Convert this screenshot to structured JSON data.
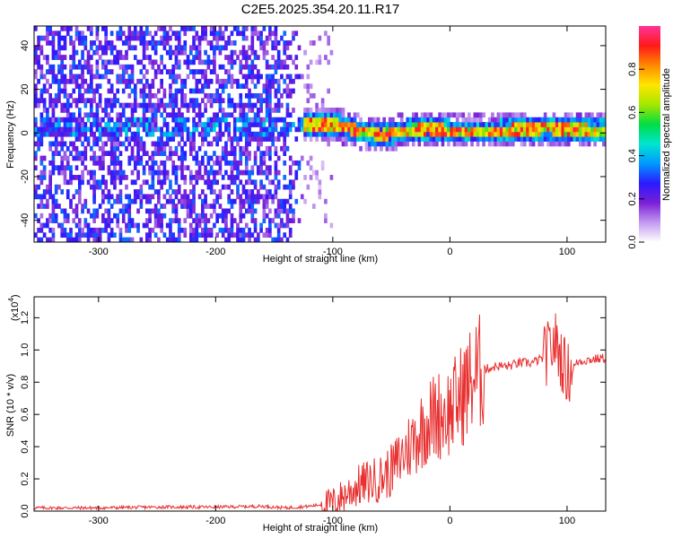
{
  "title": "C2E5.2025.354.20.11.R17",
  "chart_data": [
    {
      "type": "heatmap",
      "xlabel": "Height of straight line (km)",
      "ylabel": "Frequency (Hz)",
      "xlim": [
        -355,
        133
      ],
      "ylim": [
        -50,
        49
      ],
      "xticks": [
        -300,
        -200,
        -100,
        0,
        100
      ],
      "yticks": [
        -40,
        -20,
        0,
        20,
        40
      ],
      "colorbar": {
        "label": "Normalized spectral amplitude",
        "range": [
          0,
          1
        ],
        "ticks": [
          "0.0",
          "0.2",
          "0.4",
          "0.6",
          "0.8"
        ],
        "colormap": [
          "#ffffff",
          "#c299f0",
          "#7a1fd6",
          "#2a1aff",
          "#0099ff",
          "#00e5d0",
          "#00dd44",
          "#a6e600",
          "#ffe600",
          "#ff8800",
          "#ff1a1a",
          "#ff3399"
        ]
      },
      "ridge": {
        "description_points_x": [
          -150,
          -120,
          -100,
          -80,
          -60,
          -40,
          -20,
          0,
          40,
          80,
          133
        ],
        "frequency_hz": [
          2,
          3,
          3,
          0,
          -2,
          0,
          1,
          0,
          0,
          1,
          0
        ]
      }
    },
    {
      "type": "line",
      "xlabel": "Height of straight line (km)",
      "ylabel": "SNR (10 * v/v)",
      "exponent_label": "(x10",
      "exponent_power": "4",
      "exponent_close": ")",
      "xlim": [
        -355,
        133
      ],
      "ylim": [
        0,
        1.33
      ],
      "xticks": [
        -300,
        -200,
        -100,
        0,
        100
      ],
      "yticks": [
        "0.0",
        "0.2",
        "0.4",
        "0.6",
        "0.8",
        "1.0",
        "1.2"
      ],
      "color": "#e83030",
      "series": [
        {
          "x": [
            -355,
            -300,
            -250,
            -200,
            -160,
            -140,
            -120,
            -100,
            -90,
            -80,
            -70,
            -60,
            -50,
            -40,
            -30,
            -20,
            -10,
            0,
            10,
            20,
            30,
            40,
            50,
            60,
            70,
            80,
            90,
            100,
            110,
            120,
            133
          ],
          "y": [
            0.02,
            0.02,
            0.025,
            0.025,
            0.03,
            0.02,
            0.03,
            0.05,
            0.1,
            0.15,
            0.18,
            0.2,
            0.25,
            0.35,
            0.45,
            0.55,
            0.6,
            0.62,
            0.72,
            0.83,
            0.88,
            0.9,
            0.9,
            0.92,
            0.92,
            0.95,
            1.05,
            0.85,
            0.93,
            0.94,
            0.95
          ]
        }
      ]
    }
  ]
}
